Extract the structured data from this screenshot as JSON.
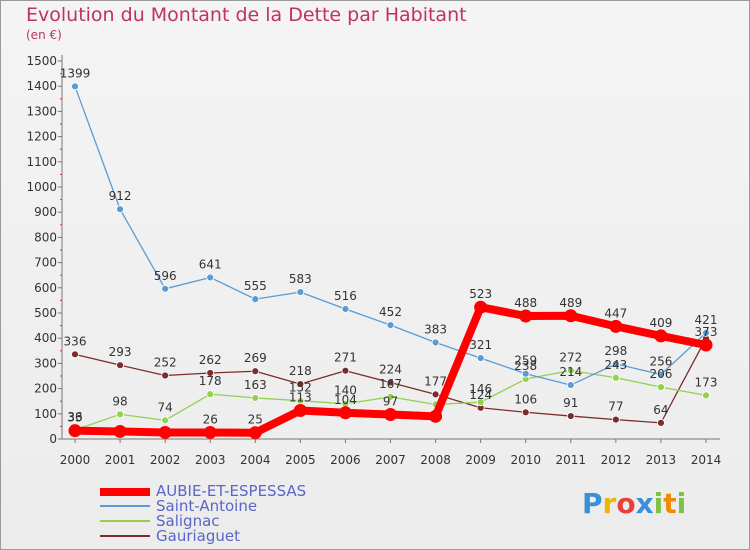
{
  "title": "Evolution du Montant de la Dette par Habitant",
  "subtitle": "(en €)",
  "logo": {
    "text": "Proxiti",
    "letters": [
      {
        "ch": "P",
        "color": "#3a8fd8"
      },
      {
        "ch": "r",
        "color": "#f0b400"
      },
      {
        "ch": "o",
        "color": "#e8413a"
      },
      {
        "ch": "x",
        "color": "#3a8fd8"
      },
      {
        "ch": "i",
        "color": "#7dc242"
      },
      {
        "ch": "t",
        "color": "#f08a00"
      },
      {
        "ch": "i",
        "color": "#7dc242"
      }
    ]
  },
  "chart_data": {
    "type": "line",
    "x": [
      2000,
      2001,
      2002,
      2003,
      2004,
      2005,
      2006,
      2007,
      2008,
      2009,
      2010,
      2011,
      2012,
      2013,
      2014
    ],
    "ylim": [
      0,
      1500
    ],
    "yticks": [
      0,
      100,
      200,
      300,
      400,
      500,
      600,
      700,
      800,
      900,
      1000,
      1100,
      1200,
      1300,
      1400,
      1500
    ],
    "grid": false,
    "legend_position": "bottom-left",
    "series": [
      {
        "name": "AUBIE-ET-ESPESSAS",
        "color": "#ff0000",
        "values": [
          33,
          30,
          26,
          26,
          25,
          113,
          104,
          97,
          90,
          523,
          488,
          489,
          447,
          409,
          373
        ],
        "labels": [
          "33",
          "",
          "",
          "26",
          "25",
          "113",
          "104",
          "97",
          "",
          "523",
          "488",
          "489",
          "447",
          "409",
          "373"
        ]
      },
      {
        "name": "Saint-Antoine",
        "color": "#5b9bd5",
        "values": [
          1399,
          912,
          596,
          641,
          555,
          583,
          516,
          452,
          383,
          321,
          259,
          214,
          298,
          256,
          421
        ],
        "labels": [
          "1399",
          "912",
          "596",
          "641",
          "555",
          "583",
          "516",
          "452",
          "383",
          "321",
          "259",
          "214",
          "298",
          "256",
          "421"
        ]
      },
      {
        "name": "Salignac",
        "color": "#92d050",
        "values": [
          36,
          98,
          74,
          178,
          163,
          152,
          140,
          167,
          137,
          146,
          238,
          272,
          243,
          206,
          173
        ],
        "labels": [
          "36",
          "98",
          "74",
          "178",
          "163",
          "152",
          "140",
          "167",
          "",
          "146",
          "238",
          "272",
          "243",
          "206",
          "173"
        ]
      },
      {
        "name": "Gauriaguet",
        "color": "#7b2c2c",
        "values": [
          336,
          293,
          252,
          262,
          269,
          218,
          271,
          224,
          177,
          124,
          106,
          91,
          77,
          64,
          399
        ],
        "labels": [
          "336",
          "293",
          "252",
          "262",
          "269",
          "218",
          "271",
          "224",
          "177",
          "124",
          "106",
          "91",
          "77",
          "64",
          ""
        ]
      }
    ]
  }
}
